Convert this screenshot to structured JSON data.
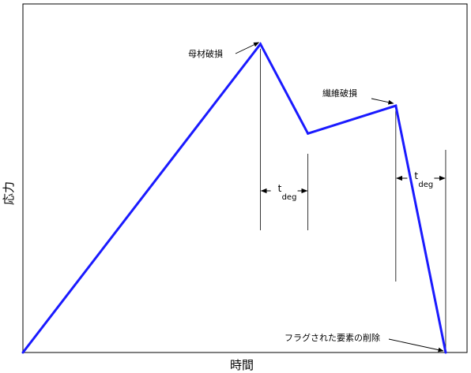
{
  "chart_data": {
    "type": "line",
    "title": "",
    "xlabel": "時間",
    "ylabel": "応力",
    "grid": false,
    "legend": "none",
    "series_color": "#1a1aff",
    "x": [
      0,
      100,
      120,
      157,
      178
    ],
    "y": [
      0,
      100,
      71,
      80,
      0
    ],
    "xlim": [
      0,
      187
    ],
    "ylim": [
      0,
      113
    ],
    "annotations": [
      {
        "id": "matrix",
        "text": "母材破損",
        "x": 100,
        "y": 100
      },
      {
        "id": "fiber",
        "text": "繊維破損",
        "x": 157,
        "y": 80
      },
      {
        "id": "deleted",
        "text": "フラグされた要素の削除",
        "x": 178,
        "y": 0
      }
    ],
    "intervals": [
      {
        "id": "tdeg-1",
        "label": "t",
        "subscript": "deg",
        "x_start": 100,
        "x_end": 120
      },
      {
        "id": "tdeg-2",
        "label": "t",
        "subscript": "deg",
        "x_start": 157,
        "x_end": 178
      }
    ]
  }
}
